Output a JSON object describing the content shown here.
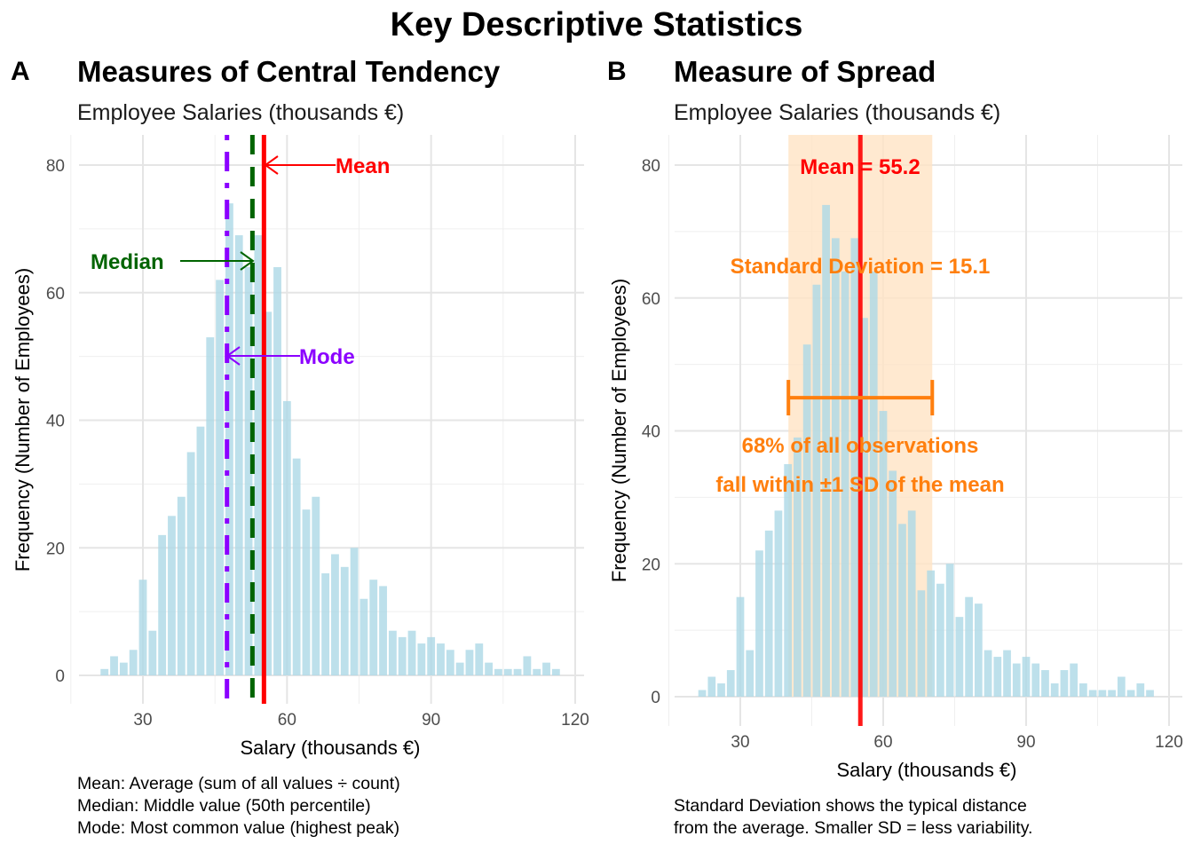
{
  "figure": {
    "title": "Key Descriptive Statistics"
  },
  "colors": {
    "bar_fill": "#add8e6",
    "mean": "#ff0000",
    "median": "#006400",
    "mode": "#8b00ff",
    "sd": "#ff7f0e",
    "sd_band": "#ffe4c4"
  },
  "chart_data": [
    {
      "type": "bar",
      "panel_tag": "A",
      "title": "Measures of Central Tendency",
      "subtitle": "Employee Salaries (thousands €)",
      "xlabel": "Salary (thousands €)",
      "ylabel": "Frequency (Number of Employees)",
      "xlim": [
        18,
        121
      ],
      "ylim": [
        -2,
        84
      ],
      "xticks": [
        30,
        60,
        90,
        120
      ],
      "yticks": [
        0,
        20,
        40,
        60,
        80
      ],
      "grid": true,
      "bin_width": 2,
      "x": [
        22,
        24,
        26,
        28,
        30,
        32,
        34,
        36,
        38,
        40,
        42,
        44,
        46,
        48,
        50,
        52,
        54,
        56,
        58,
        60,
        62,
        64,
        66,
        68,
        70,
        72,
        74,
        76,
        78,
        80,
        82,
        84,
        86,
        88,
        90,
        92,
        94,
        96,
        98,
        100,
        102,
        104,
        106,
        108,
        110,
        112,
        114,
        116
      ],
      "values": [
        1,
        3,
        2,
        4,
        15,
        7,
        22,
        25,
        28,
        35,
        39,
        53,
        62,
        74,
        69,
        64,
        69,
        57,
        64,
        43,
        34,
        26,
        28,
        16,
        19,
        17,
        20,
        12,
        15,
        14,
        7,
        6,
        7,
        5,
        6,
        5,
        4,
        2,
        4,
        5,
        2,
        1,
        1,
        1,
        3,
        1,
        2,
        1
      ],
      "reference_lines": [
        {
          "name": "Mean",
          "value": 55.2,
          "style": "solid",
          "label_y": 80
        },
        {
          "name": "Median",
          "value": 52.8,
          "style": "dashed",
          "label_y": 65
        },
        {
          "name": "Mode",
          "value": 47.5,
          "style": "dotdash",
          "label_y": 50
        }
      ],
      "annotations": {
        "mean_label": "Mean",
        "median_label": "Median",
        "mode_label": "Mode"
      },
      "caption": [
        "Mean: Average (sum of all values ÷ count)",
        "Median: Middle value (50th percentile)",
        "Mode: Most common value (highest peak)"
      ]
    },
    {
      "type": "bar",
      "panel_tag": "B",
      "title": "Measure of Spread",
      "subtitle": "Employee Salaries (thousands €)",
      "xlabel": "Salary (thousands €)",
      "ylabel": "Frequency (Number of Employees)",
      "xlim": [
        18,
        121
      ],
      "ylim": [
        -2,
        84
      ],
      "xticks": [
        30,
        60,
        90,
        120
      ],
      "yticks": [
        0,
        20,
        40,
        60,
        80
      ],
      "grid": true,
      "bin_width": 2,
      "x": [
        22,
        24,
        26,
        28,
        30,
        32,
        34,
        36,
        38,
        40,
        42,
        44,
        46,
        48,
        50,
        52,
        54,
        56,
        58,
        60,
        62,
        64,
        66,
        68,
        70,
        72,
        74,
        76,
        78,
        80,
        82,
        84,
        86,
        88,
        90,
        92,
        94,
        96,
        98,
        100,
        102,
        104,
        106,
        108,
        110,
        112,
        114,
        116
      ],
      "values": [
        1,
        3,
        2,
        4,
        15,
        7,
        22,
        25,
        28,
        35,
        39,
        53,
        62,
        74,
        69,
        64,
        69,
        57,
        64,
        43,
        34,
        26,
        28,
        16,
        19,
        17,
        20,
        12,
        15,
        14,
        7,
        6,
        7,
        5,
        6,
        5,
        4,
        2,
        4,
        5,
        2,
        1,
        1,
        1,
        3,
        1,
        2,
        1
      ],
      "mean": 55.2,
      "sd": 15.1,
      "sd_band": [
        40.1,
        70.3
      ],
      "sd_bar_y": 45,
      "annotations": {
        "mean_label": "Mean = 55.2",
        "sd_label": "Standard Deviation = 15.1",
        "pct_line1": "68% of all observations",
        "pct_line2": "fall within ±1 SD of the mean"
      },
      "caption": [
        "Standard Deviation shows the typical distance",
        "from the average. Smaller SD = less variability."
      ]
    }
  ]
}
